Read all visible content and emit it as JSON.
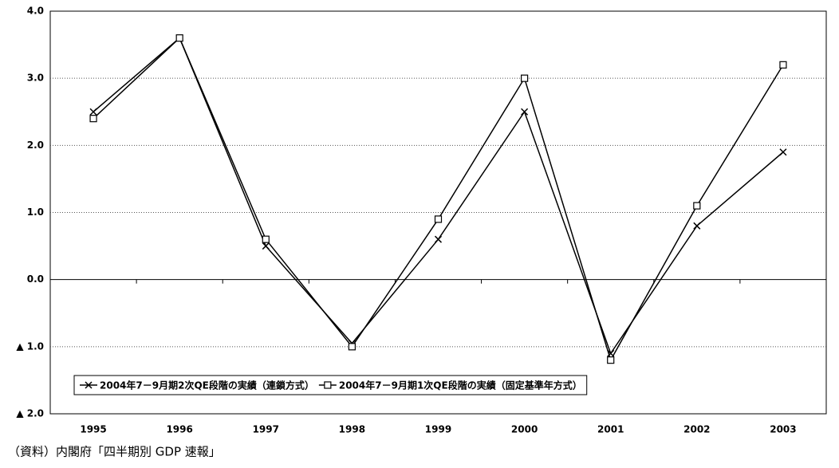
{
  "chart_data": {
    "type": "line",
    "categories": [
      "1995",
      "1996",
      "1997",
      "1998",
      "1999",
      "2000",
      "2001",
      "2002",
      "2003"
    ],
    "series": [
      {
        "name": "2004年7－9月期2次QE段階の実績（連鎖方式）",
        "color": "#000000",
        "marker": "x",
        "values": [
          2.5,
          3.6,
          0.5,
          -0.95,
          0.6,
          2.5,
          -1.1,
          0.8,
          1.9
        ]
      },
      {
        "name": "2004年7－9月期1次QE段階の実績（固定基準年方式）",
        "color": "#000000",
        "marker": "square",
        "values": [
          2.4,
          3.6,
          0.6,
          -1.0,
          0.9,
          3.0,
          -1.2,
          1.1,
          3.2
        ]
      }
    ],
    "ylim": [
      -2,
      4
    ],
    "yticks": [
      {
        "value": -2,
        "label": "▲ 2.0"
      },
      {
        "value": -1,
        "label": "▲ 1.0"
      },
      {
        "value": 0,
        "label": "0.0"
      },
      {
        "value": 1,
        "label": "1.0"
      },
      {
        "value": 2,
        "label": "2.0"
      },
      {
        "value": 3,
        "label": "3.0"
      },
      {
        "value": 4,
        "label": "4.0"
      }
    ],
    "grid": true,
    "source": "（資料）内閣府「四半期別 GDP 速報」"
  }
}
